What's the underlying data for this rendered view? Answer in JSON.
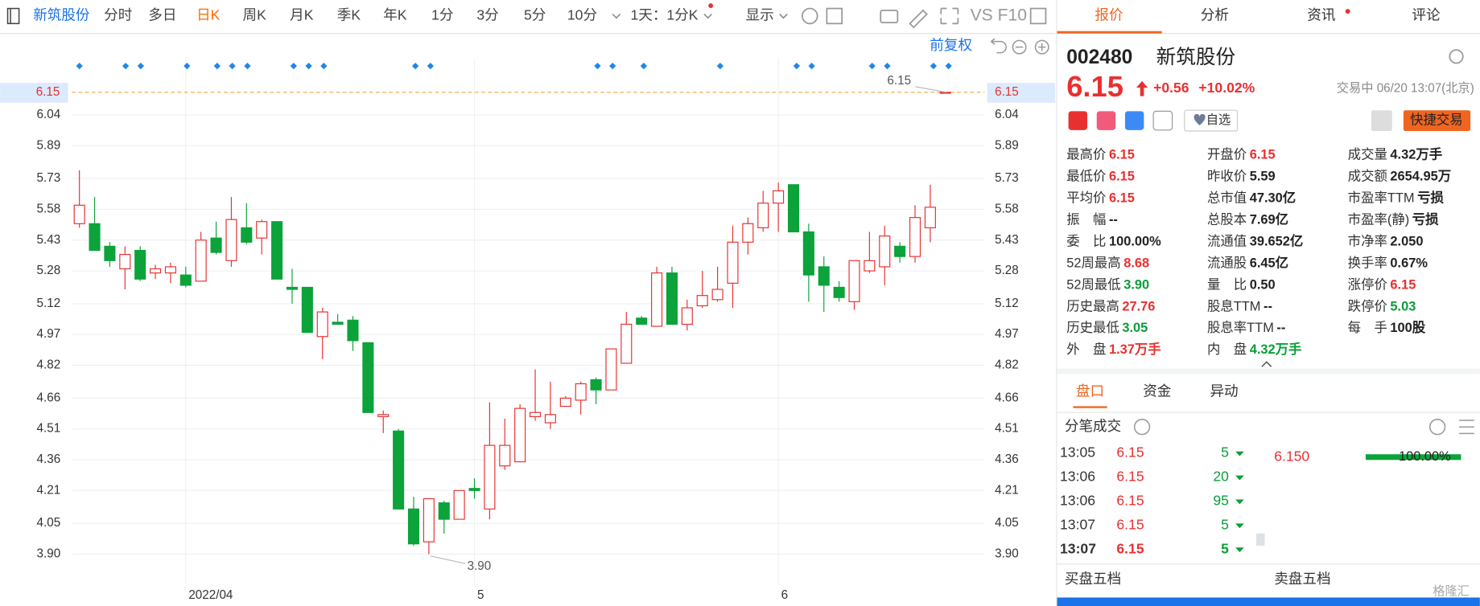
{
  "toolbar": {
    "stock": "新筑股份",
    "periods": [
      "分时",
      "多日",
      "日K",
      "周K",
      "月K",
      "季K",
      "年K",
      "1分",
      "3分",
      "5分",
      "10分"
    ],
    "active_period": "日K",
    "interval": "1天：1分K",
    "display": "显示",
    "vs": "VS",
    "f10": "F10",
    "adjust": "前复权"
  },
  "chart_data": {
    "type": "candlestick",
    "categories": [
      null,
      null,
      null,
      null,
      null,
      null,
      null,
      "2022/04",
      null,
      null,
      null,
      null,
      null,
      null,
      null,
      null,
      null,
      null,
      null,
      null,
      null,
      null,
      null,
      null,
      null,
      null,
      "5",
      null,
      null,
      null,
      null,
      null,
      null,
      null,
      null,
      null,
      null,
      null,
      null,
      null,
      null,
      null,
      null,
      null,
      null,
      null,
      "6",
      null,
      null,
      null,
      null,
      null,
      null,
      null,
      null,
      null,
      null,
      null
    ],
    "open": [
      5.51,
      5.51,
      5.4,
      5.29,
      5.38,
      5.27,
      5.27,
      5.26,
      5.23,
      5.44,
      5.33,
      5.49,
      5.44,
      5.52,
      5.2,
      5.2,
      4.96,
      5.03,
      5.04,
      4.93,
      4.57,
      4.5,
      4.12,
      3.96,
      4.15,
      4.07,
      4.22,
      4.12,
      4.33,
      4.35,
      4.57,
      4.54,
      4.62,
      4.65,
      4.75,
      4.7,
      4.83,
      5.05,
      5.01,
      5.27,
      5.02,
      5.11,
      5.14,
      5.22,
      5.42,
      5.49,
      5.61,
      5.7,
      5.47,
      5.3,
      5.2,
      5.13,
      5.28,
      5.3,
      5.4,
      5.35,
      5.49,
      6.15
    ],
    "high": [
      5.77,
      5.64,
      5.42,
      5.4,
      5.4,
      5.31,
      5.32,
      5.3,
      5.47,
      5.52,
      5.64,
      5.61,
      5.53,
      5.52,
      5.29,
      5.2,
      5.1,
      5.07,
      5.06,
      4.93,
      4.6,
      4.51,
      4.18,
      4.17,
      4.16,
      4.21,
      4.27,
      4.64,
      4.56,
      4.63,
      4.8,
      4.74,
      4.67,
      4.74,
      4.76,
      4.9,
      5.08,
      5.06,
      5.3,
      5.3,
      5.14,
      5.28,
      5.3,
      5.5,
      5.54,
      5.67,
      5.71,
      5.7,
      5.51,
      5.35,
      5.23,
      5.33,
      5.47,
      5.5,
      5.42,
      5.6,
      5.7,
      6.15
    ],
    "low": [
      5.49,
      5.38,
      5.3,
      5.19,
      5.23,
      5.24,
      5.22,
      5.2,
      5.23,
      5.36,
      5.3,
      5.41,
      5.36,
      5.24,
      5.12,
      4.98,
      4.85,
      5.02,
      4.89,
      4.59,
      4.49,
      4.12,
      3.94,
      3.9,
      4.0,
      4.07,
      4.17,
      4.07,
      4.31,
      4.35,
      4.55,
      4.51,
      4.62,
      4.58,
      4.63,
      4.7,
      4.83,
      5.02,
      5.01,
      5.02,
      4.99,
      5.1,
      5.13,
      5.1,
      5.36,
      5.47,
      5.47,
      5.47,
      5.13,
      5.08,
      5.13,
      5.09,
      5.27,
      5.21,
      5.32,
      5.32,
      5.42,
      6.15
    ],
    "close": [
      5.6,
      5.38,
      5.33,
      5.36,
      5.24,
      5.29,
      5.3,
      5.21,
      5.43,
      5.37,
      5.53,
      5.42,
      5.52,
      5.24,
      5.19,
      4.98,
      5.08,
      5.02,
      4.94,
      4.59,
      4.58,
      4.12,
      3.95,
      4.17,
      4.07,
      4.21,
      4.21,
      4.43,
      4.43,
      4.61,
      4.59,
      4.58,
      4.66,
      4.73,
      4.7,
      4.9,
      5.02,
      5.02,
      5.27,
      5.02,
      5.1,
      5.16,
      5.19,
      5.42,
      5.51,
      5.61,
      5.67,
      5.47,
      5.26,
      5.21,
      5.15,
      5.33,
      5.33,
      5.45,
      5.35,
      5.54,
      5.59,
      6.15
    ],
    "up_color": "#e93030",
    "down_color": "#0ba33a",
    "ylim": [
      3.753,
      6.315
    ],
    "yticks": [
      {
        "value": 3.9,
        "label": "3.90"
      },
      4.05,
      4.21,
      4.36,
      4.51,
      4.66,
      4.82,
      4.97,
      5.12,
      5.28,
      5.43,
      5.58,
      5.73,
      5.89,
      6.04
    ],
    "grid": true,
    "last_price": 6.15,
    "annotations": [
      "6.15",
      "3.90"
    ]
  },
  "panel": {
    "tabs": [
      "报价",
      "分析",
      "资讯",
      "评论"
    ],
    "code": "002480",
    "name": "新筑股份",
    "price": "6.15",
    "change": "+0.56",
    "change_pct": "+10.02%",
    "status": "交易中 06/20 13:07(北京)",
    "watch": "自选",
    "trade": "快捷交易",
    "stats": [
      [
        {
          "label": "最高价",
          "value": "6.15",
          "color": "#e93030"
        },
        {
          "label": "最低价",
          "value": "6.15",
          "color": "#e93030"
        },
        {
          "label": "平均价",
          "value": "6.15",
          "color": "#e93030"
        },
        {
          "label": "振　幅",
          "value": "--",
          "color": "#222"
        },
        {
          "label": "委　比",
          "value": "100.00%",
          "color": "#222"
        },
        {
          "label": "52周最高",
          "value": "8.68",
          "color": "#e93030"
        },
        {
          "label": "52周最低",
          "value": "3.90",
          "color": "#0a9e3a"
        },
        {
          "label": "历史最高",
          "value": "27.76",
          "color": "#e93030"
        },
        {
          "label": "历史最低",
          "value": "3.05",
          "color": "#0a9e3a"
        },
        {
          "label": "外　盘",
          "value": "1.37万手",
          "color": "#e93030"
        }
      ],
      [
        {
          "label": "开盘价",
          "value": "6.15",
          "color": "#e93030"
        },
        {
          "label": "昨收价",
          "value": "5.59",
          "color": "#222"
        },
        {
          "label": "总市值",
          "value": "47.30亿",
          "color": "#222"
        },
        {
          "label": "总股本",
          "value": "7.69亿",
          "color": "#222"
        },
        {
          "label": "流通值",
          "value": "39.652亿",
          "color": "#222"
        },
        {
          "label": "流通股",
          "value": "6.45亿",
          "color": "#222"
        },
        {
          "label": "量　比",
          "value": "0.50",
          "color": "#222"
        },
        {
          "label": "股息TTM",
          "value": "--",
          "color": "#222"
        },
        {
          "label": "股息率TTM",
          "value": "--",
          "color": "#222"
        },
        {
          "label": "内　盘",
          "value": "4.32万手",
          "color": "#0a9e3a"
        }
      ],
      [
        {
          "label": "成交量",
          "value": "4.32万手",
          "color": "#222"
        },
        {
          "label": "成交额",
          "value": "2654.95万",
          "color": "#222"
        },
        {
          "label": "市盈率TTM",
          "value": "亏损",
          "color": "#222"
        },
        {
          "label": "市盈率(静)",
          "value": "亏损",
          "color": "#222"
        },
        {
          "label": "市净率",
          "value": "2.050",
          "color": "#222"
        },
        {
          "label": "换手率",
          "value": "0.67%",
          "color": "#222"
        },
        {
          "label": "涨停价",
          "value": "6.15",
          "color": "#e93030"
        },
        {
          "label": "跌停价",
          "value": "5.03",
          "color": "#0a9e3a"
        },
        {
          "label": "每　手",
          "value": "100股",
          "color": "#222"
        }
      ]
    ],
    "subtabs": [
      "盘口",
      "资金",
      "异动"
    ],
    "ticks_title": "分笔成交",
    "trades": [
      {
        "time": "13:05",
        "price": "6.15",
        "volume": "5"
      },
      {
        "time": "13:06",
        "price": "6.15",
        "volume": "20"
      },
      {
        "time": "13:06",
        "price": "6.15",
        "volume": "95"
      },
      {
        "time": "13:07",
        "price": "6.15",
        "volume": "5"
      },
      {
        "time": "13:07",
        "price": "6.15",
        "volume": "5"
      }
    ],
    "level_price": "6.150",
    "level_pct": "100.00%",
    "bid_title": "买盘五档",
    "ask_title": "卖盘五档",
    "watermark": "格隆汇"
  }
}
